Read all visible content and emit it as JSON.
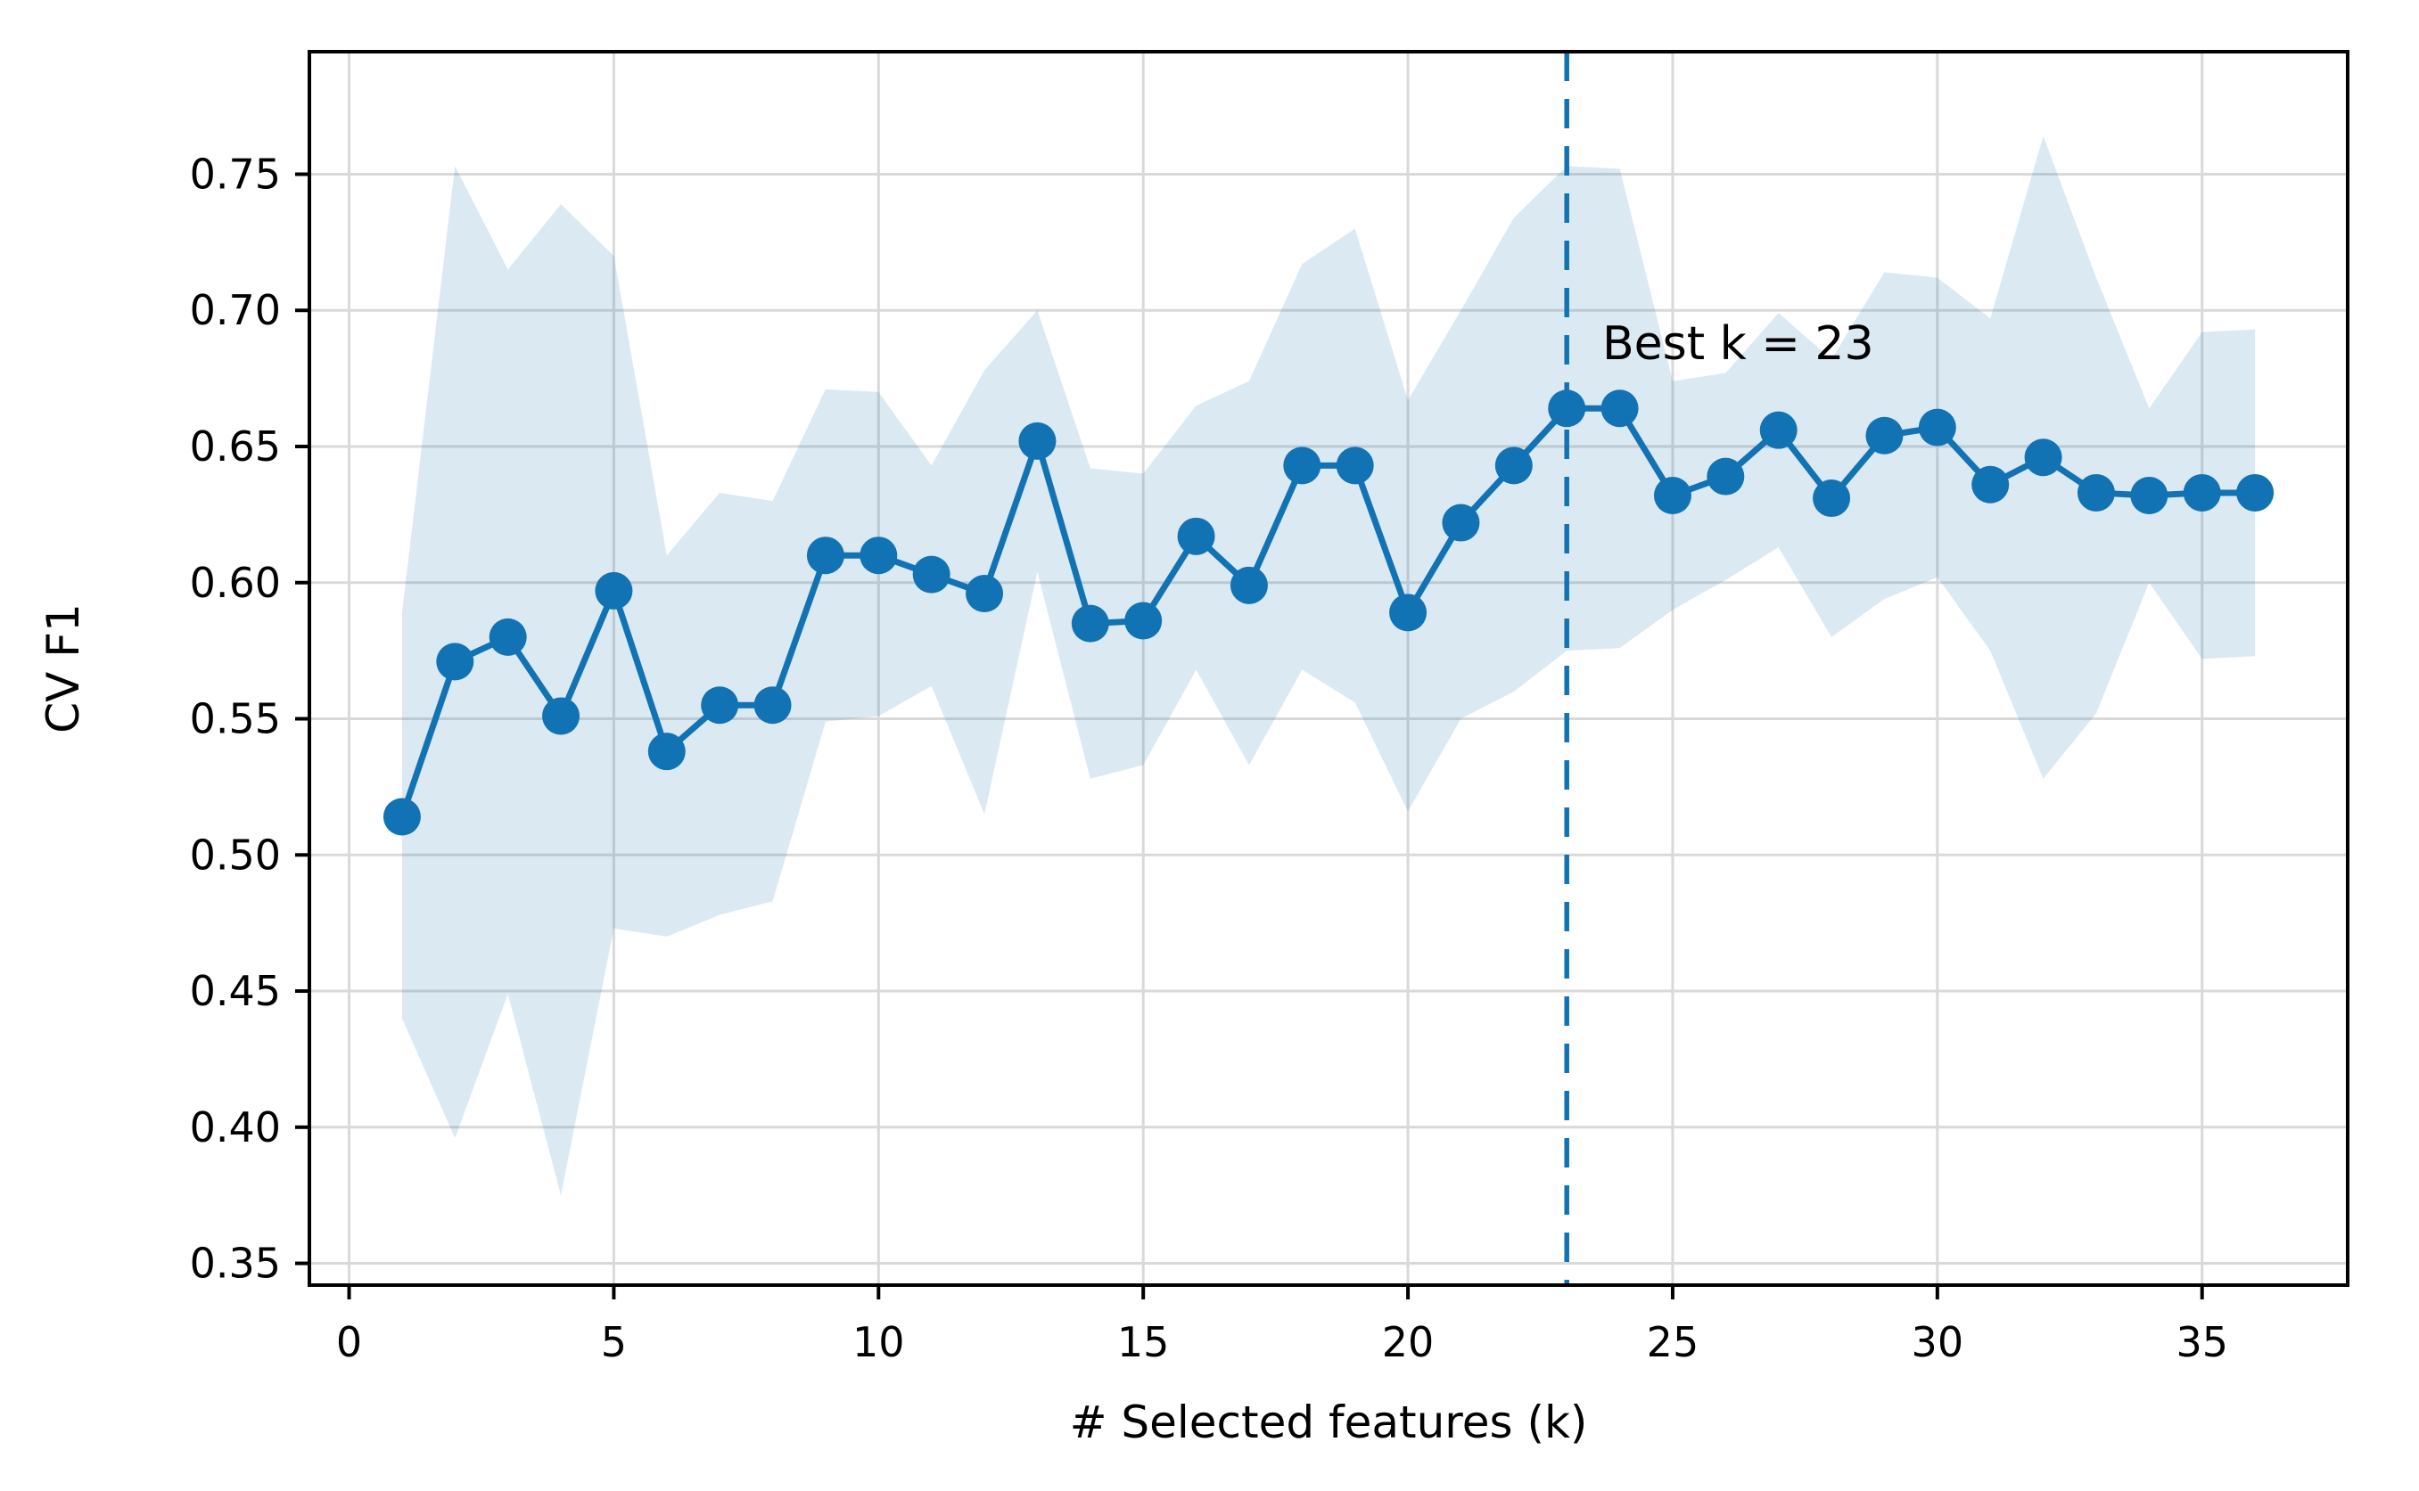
{
  "chart_data": {
    "type": "line",
    "xlabel": "# Selected features (k)",
    "ylabel": "CV F1",
    "x": [
      1,
      2,
      3,
      4,
      5,
      6,
      7,
      8,
      9,
      10,
      11,
      12,
      13,
      14,
      15,
      16,
      17,
      18,
      19,
      20,
      21,
      22,
      23,
      24,
      25,
      26,
      27,
      28,
      29,
      30,
      31,
      32,
      33,
      34,
      35,
      36
    ],
    "series": [
      {
        "name": "CV F1 mean",
        "values": [
          0.514,
          0.571,
          0.58,
          0.551,
          0.597,
          0.538,
          0.555,
          0.555,
          0.61,
          0.61,
          0.603,
          0.596,
          0.652,
          0.585,
          0.586,
          0.617,
          0.599,
          0.643,
          0.643,
          0.589,
          0.622,
          0.643,
          0.664,
          0.664,
          0.632,
          0.639,
          0.656,
          0.631,
          0.654,
          0.657,
          0.636,
          0.646,
          0.633,
          0.632,
          0.633,
          0.633
        ]
      }
    ],
    "band": {
      "name": "confidence band",
      "upper": [
        0.589,
        0.753,
        0.715,
        0.739,
        0.72,
        0.61,
        0.633,
        0.63,
        0.671,
        0.67,
        0.643,
        0.678,
        0.7,
        0.642,
        0.64,
        0.665,
        0.674,
        0.717,
        0.73,
        0.667,
        0.7,
        0.734,
        0.753,
        0.752,
        0.674,
        0.677,
        0.699,
        0.682,
        0.714,
        0.712,
        0.697,
        0.764,
        0.712,
        0.664,
        0.692,
        0.693
      ],
      "lower": [
        0.44,
        0.396,
        0.449,
        0.375,
        0.473,
        0.47,
        0.478,
        0.483,
        0.549,
        0.551,
        0.562,
        0.515,
        0.604,
        0.528,
        0.533,
        0.568,
        0.533,
        0.568,
        0.556,
        0.516,
        0.55,
        0.56,
        0.575,
        0.576,
        0.59,
        0.601,
        0.613,
        0.58,
        0.594,
        0.602,
        0.575,
        0.528,
        0.552,
        0.6,
        0.572,
        0.573
      ]
    },
    "vline": {
      "x": 23,
      "style": "dashed"
    },
    "annotation": {
      "text": "Best k = 23",
      "x": 23.67,
      "y": 0.682
    },
    "xlim": [
      -0.75,
      37.75
    ],
    "ylim": [
      0.342,
      0.795
    ],
    "x_ticks": [
      "0",
      "5",
      "10",
      "15",
      "20",
      "25",
      "30",
      "35"
    ],
    "y_ticks": [
      "0.35",
      "0.40",
      "0.45",
      "0.50",
      "0.55",
      "0.60",
      "0.65",
      "0.70",
      "0.75"
    ],
    "grid": true,
    "legend": "none",
    "colors": {
      "line": "#1273b4",
      "marker": "#1273b4",
      "vline": "#1273b4",
      "band_fill": "rgba(31,119,180,0.16)",
      "grid": "#d9d9d9",
      "spine": "#000000",
      "text": "#000000",
      "background": "#ffffff"
    }
  }
}
